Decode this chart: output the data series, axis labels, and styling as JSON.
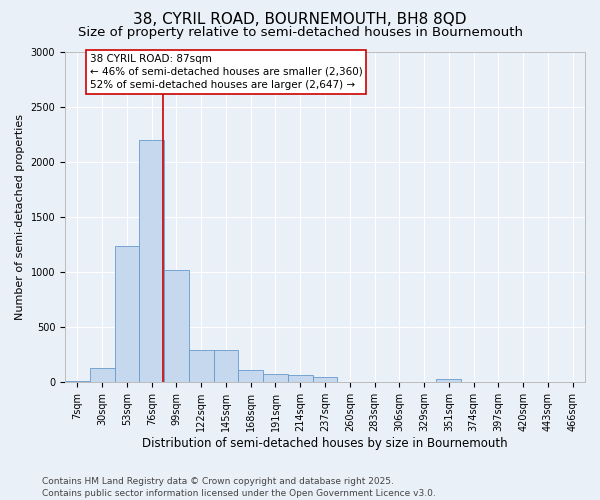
{
  "title": "38, CYRIL ROAD, BOURNEMOUTH, BH8 8QD",
  "subtitle": "Size of property relative to semi-detached houses in Bournemouth",
  "xlabel": "Distribution of semi-detached houses by size in Bournemouth",
  "ylabel": "Number of semi-detached properties",
  "footer": "Contains HM Land Registry data © Crown copyright and database right 2025.\nContains public sector information licensed under the Open Government Licence v3.0.",
  "categories": [
    "7sqm",
    "30sqm",
    "53sqm",
    "76sqm",
    "99sqm",
    "122sqm",
    "145sqm",
    "168sqm",
    "191sqm",
    "214sqm",
    "237sqm",
    "260sqm",
    "283sqm",
    "306sqm",
    "329sqm",
    "351sqm",
    "374sqm",
    "397sqm",
    "420sqm",
    "443sqm",
    "466sqm"
  ],
  "values": [
    10,
    130,
    1240,
    2200,
    1020,
    290,
    290,
    115,
    80,
    65,
    50,
    0,
    0,
    0,
    0,
    28,
    0,
    0,
    0,
    0,
    0
  ],
  "bar_color": "#c5d8ed",
  "bar_edge_color": "#6699cc",
  "property_line_x": 3.45,
  "annotation_text": "38 CYRIL ROAD: 87sqm\n← 46% of semi-detached houses are smaller (2,360)\n52% of semi-detached houses are larger (2,647) →",
  "annotation_box_color": "#ffffff",
  "annotation_box_edge": "#cc0000",
  "vline_color": "#cc0000",
  "ylim": [
    0,
    3000
  ],
  "yticks": [
    0,
    500,
    1000,
    1500,
    2000,
    2500,
    3000
  ],
  "background_color": "#eaf0f8",
  "grid_color": "#ffffff",
  "title_fontsize": 11,
  "subtitle_fontsize": 9.5,
  "tick_fontsize": 7,
  "ylabel_fontsize": 8,
  "xlabel_fontsize": 8.5,
  "footer_fontsize": 6.5,
  "ann_fontsize": 7.5
}
